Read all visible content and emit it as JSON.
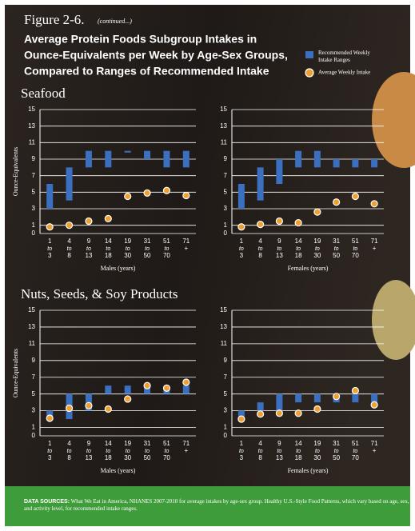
{
  "header": {
    "figure": "Figure 2-6.",
    "continued": "(continued...)",
    "title": [
      "Average Protein Foods Subgroup Intakes in",
      "Ounce-Equivalents per Week by Age-Sex Groups,",
      "Compared to Ranges of Recommended Intake"
    ]
  },
  "sections": [
    "Seafood",
    "Nuts, Seeds, & Soy Products"
  ],
  "chart_data": [
    {
      "type": "range-dot",
      "y_label": "Ounce-Equivalents",
      "x_label": "Males (years)",
      "categories": [
        "1 to 3",
        "4 to 8",
        "9 to 13",
        "14 to 18",
        "19 to 30",
        "31 to 50",
        "51 to 70",
        "71 +"
      ],
      "ylim": [
        0,
        15
      ],
      "yticks": [
        0,
        1,
        3,
        5,
        7,
        9,
        11,
        13,
        15
      ],
      "grid": true,
      "series": [
        {
          "name": "Recommended Weekly Intake Ranges",
          "color": "#3b6fc0",
          "low": [
            3,
            4,
            8,
            8,
            9.8,
            9,
            8,
            8
          ],
          "high": [
            6,
            8,
            10,
            10,
            10,
            10,
            10,
            10
          ]
        },
        {
          "name": "Average Weekly Intake",
          "color": "#f0a030",
          "values": [
            0.8,
            1.0,
            1.5,
            1.8,
            4.5,
            4.9,
            5.2,
            4.6
          ]
        }
      ]
    },
    {
      "type": "range-dot",
      "x_label": "Females (years)",
      "categories": [
        "1 to 3",
        "4 to 8",
        "9 to 13",
        "14 to 18",
        "19 to 30",
        "31 to 50",
        "51 to 70",
        "71 +"
      ],
      "ylim": [
        0,
        15
      ],
      "yticks": [
        0,
        1,
        3,
        5,
        7,
        9,
        11,
        13,
        15
      ],
      "grid": true,
      "series": [
        {
          "name": "Recommended Weekly Intake Ranges",
          "color": "#3b6fc0",
          "low": [
            3,
            4,
            6,
            8,
            8,
            8,
            8,
            8
          ],
          "high": [
            6,
            8,
            9,
            10,
            10,
            9,
            9,
            9
          ]
        },
        {
          "name": "Average Weekly Intake",
          "color": "#f0a030",
          "values": [
            0.8,
            1.1,
            1.5,
            1.3,
            2.6,
            3.8,
            4.5,
            3.6
          ]
        }
      ]
    },
    {
      "type": "range-dot",
      "y_label": "Ounce-Equivalents",
      "x_label": "Males (years)",
      "categories": [
        "1 to 3",
        "4 to 8",
        "9 to 13",
        "14 to 18",
        "19 to 30",
        "31 to 50",
        "51 to 70",
        "71 +"
      ],
      "ylim": [
        0,
        15
      ],
      "yticks": [
        0,
        1,
        3,
        5,
        7,
        9,
        11,
        13,
        15
      ],
      "grid": true,
      "series": [
        {
          "name": "Recommended Weekly Intake Ranges",
          "color": "#3b6fc0",
          "low": [
            2,
            2,
            3,
            5,
            5,
            5,
            5,
            5
          ],
          "high": [
            3,
            5,
            5,
            6,
            6,
            6,
            6,
            6
          ]
        },
        {
          "name": "Average Weekly Intake",
          "color": "#f0a030",
          "values": [
            2.1,
            3.3,
            3.6,
            3.2,
            4.4,
            6.0,
            5.7,
            6.4
          ]
        }
      ]
    },
    {
      "type": "range-dot",
      "x_label": "Females (years)",
      "categories": [
        "1 to 3",
        "4 to 8",
        "9 to 13",
        "14 to 18",
        "19 to 30",
        "31 to 50",
        "51 to 70",
        "71 +"
      ],
      "ylim": [
        0,
        15
      ],
      "yticks": [
        0,
        1,
        3,
        5,
        7,
        9,
        11,
        13,
        15
      ],
      "grid": true,
      "series": [
        {
          "name": "Recommended Weekly Intake Ranges",
          "color": "#3b6fc0",
          "low": [
            2,
            3,
            3,
            4,
            4,
            4,
            4,
            4
          ],
          "high": [
            3,
            4,
            5,
            5,
            5,
            5,
            5,
            5
          ]
        },
        {
          "name": "Average Weekly Intake",
          "color": "#f0a030",
          "values": [
            2.0,
            2.6,
            2.7,
            2.7,
            3.2,
            4.7,
            5.4,
            3.7
          ]
        }
      ]
    }
  ],
  "footer": {
    "label": "DATA SOURCES:",
    "text": "What We Eat in America, NHANES 2007-2010 for average intakes by age-sex group. Healthy U.S.-Style Food Patterns, which vary based on age, sex, and activity level, for recommended intake ranges."
  }
}
